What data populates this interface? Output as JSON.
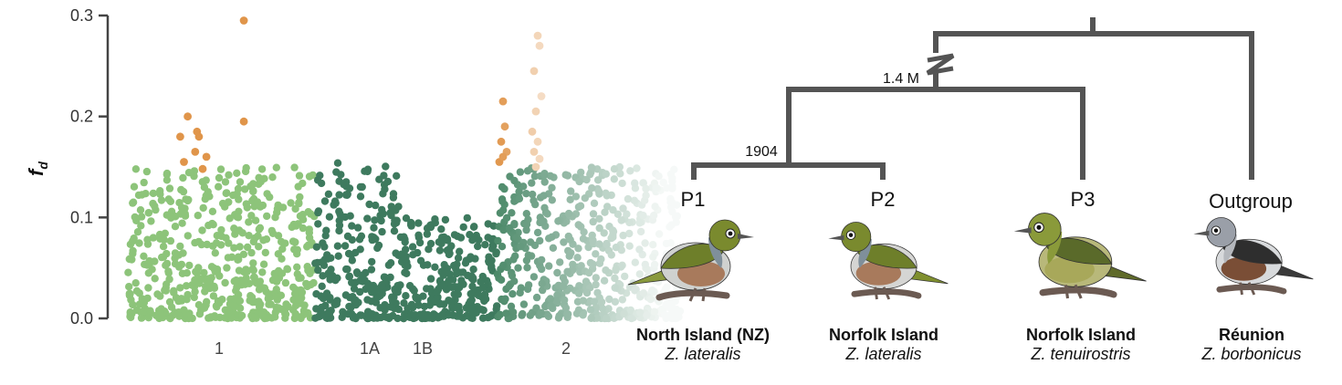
{
  "chart_data": {
    "type": "scatter",
    "ylabel": "f",
    "ylabel_subscript": "d",
    "ylim": [
      0,
      0.3
    ],
    "yticks": [
      "0.0",
      "0.1",
      "0.2",
      "0.3"
    ],
    "chromosomes": [
      {
        "label": "1",
        "color": "#8dc47a",
        "n": 520,
        "base_max": 0.15,
        "outlier_color": "#e0954a",
        "outliers": [
          [
            0.28,
            0.18
          ],
          [
            0.32,
            0.2
          ],
          [
            0.36,
            0.165
          ],
          [
            0.38,
            0.18
          ],
          [
            0.42,
            0.16
          ],
          [
            0.3,
            0.155
          ],
          [
            0.4,
            0.148
          ],
          [
            0.62,
            0.295
          ],
          [
            0.62,
            0.195
          ],
          [
            0.37,
            0.185
          ]
        ]
      },
      {
        "label": "1A",
        "color": "#3e7a5e",
        "n": 240,
        "base_max": 0.155,
        "outlier_color": null,
        "outliers": []
      },
      {
        "label": "1B",
        "color": "#3e7a5e",
        "n": 110,
        "base_max": 0.1,
        "outlier_color": null,
        "outliers": []
      },
      {
        "label": "",
        "color": "#3e7a5e",
        "n": 140,
        "base_max": 0.1,
        "outlier_color": null,
        "outliers": []
      },
      {
        "label": "2",
        "color": "#4d8a6a",
        "fade": true,
        "n": 520,
        "base_max": 0.15,
        "outlier_color": "#e0954a",
        "outliers": [
          [
            0.03,
            0.215
          ],
          [
            0.04,
            0.19
          ],
          [
            0.02,
            0.175
          ],
          [
            0.05,
            0.165
          ],
          [
            0.01,
            0.155
          ],
          [
            0.03,
            0.16
          ],
          [
            0.22,
            0.28
          ],
          [
            0.23,
            0.27
          ],
          [
            0.2,
            0.245
          ],
          [
            0.24,
            0.22
          ],
          [
            0.21,
            0.205
          ],
          [
            0.19,
            0.185
          ],
          [
            0.22,
            0.175
          ],
          [
            0.2,
            0.165
          ],
          [
            0.23,
            0.158
          ],
          [
            0.21,
            0.15
          ]
        ]
      }
    ]
  },
  "tree": {
    "node_labels": {
      "recent": "1904",
      "older": "1.4 M"
    },
    "tips": [
      {
        "code": "P1",
        "population": "North Island (NZ)",
        "species": "Z. lateralis"
      },
      {
        "code": "P2",
        "population": "Norfolk Island",
        "species": "Z. lateralis"
      },
      {
        "code": "P3",
        "population": "Norfolk Island",
        "species": "Z. tenuirostris"
      },
      {
        "code": "Outgroup",
        "population": "Réunion",
        "species": "Z. borbonicus"
      }
    ],
    "colors": {
      "branch": "#545454"
    }
  },
  "birds": [
    {
      "name": "zosterops-lateralis-nz",
      "colors": {
        "head": "#7a8a2e",
        "back": "#6e7f2a",
        "collar": "#7f8f9a",
        "flank": "#a87a5c",
        "belly": "#cfd1cf",
        "tail": "#8a9a3e"
      }
    },
    {
      "name": "zosterops-lateralis-norfolk",
      "colors": {
        "head": "#7a8a2e",
        "back": "#6e7f2a",
        "collar": "#7f8f9a",
        "flank": "#a87a5c",
        "belly": "#d5d5d3",
        "tail": "#7f8f2e"
      }
    },
    {
      "name": "zosterops-tenuirostris",
      "colors": {
        "head": "#8a9a3a",
        "back": "#5a6a2a",
        "collar": "#8a9a3a",
        "flank": "#a8a85a",
        "belly": "#b8b87a",
        "tail": "#5f6a2a"
      }
    },
    {
      "name": "zosterops-borbonicus",
      "colors": {
        "head": "#9a9fa8",
        "back": "#2e2e2e",
        "collar": "#b5b8bd",
        "flank": "#7a4e36",
        "belly": "#d8dadc",
        "tail": "#3a3a3a"
      }
    }
  ]
}
